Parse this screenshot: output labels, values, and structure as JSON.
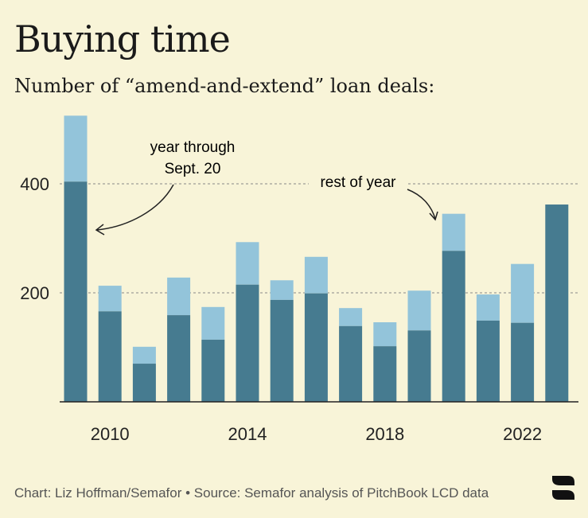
{
  "title": "Buying time",
  "subtitle": "Number of “amend-and-extend” loan deals:",
  "footer": "Chart: Liz Hoffman/Semafor • Source: Semafor analysis of PitchBook LCD data",
  "logo_text": "S",
  "colors": {
    "background": "#f8f4d8",
    "year_through": "#467b90",
    "rest_of_year": "#93c4da"
  },
  "chart_data": {
    "type": "bar",
    "stacked": true,
    "title": "Buying time",
    "subtitle": "Number of “amend-and-extend” loan deals:",
    "xlabel": "",
    "ylabel": "",
    "ylim": [
      0,
      540
    ],
    "yticks": [
      200,
      400
    ],
    "ytick_labels": [
      "200",
      "400"
    ],
    "xtick_years": [
      2010,
      2014,
      2018,
      2022
    ],
    "xtick_labels": [
      "2010",
      "2014",
      "2018",
      "2022"
    ],
    "grid": "dotted horizontal",
    "categories": [
      2009,
      2010,
      2011,
      2012,
      2013,
      2014,
      2015,
      2016,
      2017,
      2018,
      2019,
      2020,
      2021,
      2022,
      2023
    ],
    "series": [
      {
        "name": "year through Sept. 20",
        "values": [
          404,
          166,
          70,
          159,
          114,
          215,
          187,
          199,
          139,
          102,
          131,
          277,
          149,
          145,
          362
        ]
      },
      {
        "name": "rest of year",
        "values": [
          121,
          47,
          31,
          69,
          60,
          78,
          36,
          67,
          33,
          44,
          73,
          68,
          48,
          108,
          0
        ]
      }
    ],
    "annotations": [
      {
        "line1": "year through",
        "line2": "Sept. 20"
      },
      {
        "line1": "rest of year"
      }
    ]
  }
}
